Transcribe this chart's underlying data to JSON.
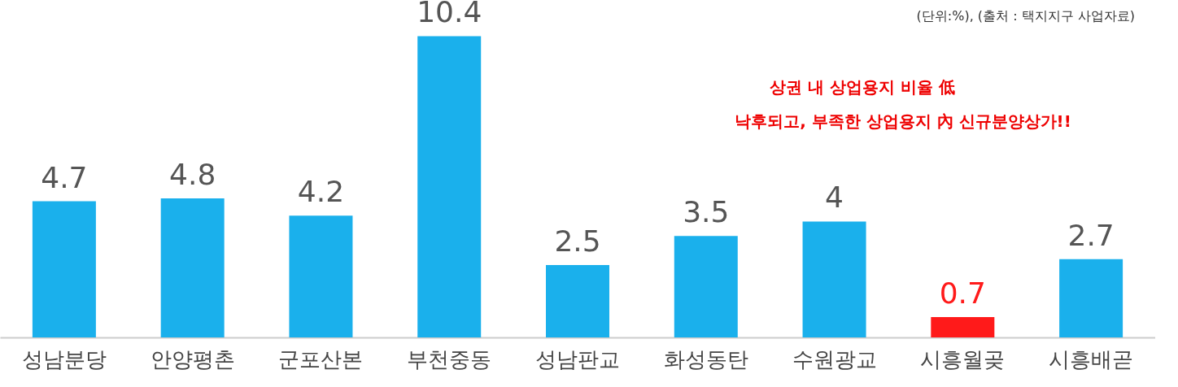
{
  "chart_data": {
    "type": "bar",
    "categories": [
      "성남분당",
      "안양평촌",
      "군포산본",
      "부천중동",
      "성남판교",
      "화성동탄",
      "수원광교",
      "시흥월곶",
      "시흥배곧"
    ],
    "values": [
      4.7,
      4.8,
      4.2,
      10.4,
      2.5,
      3.5,
      4,
      0.7,
      2.7
    ],
    "colors": [
      "#1ab0ec",
      "#1ab0ec",
      "#1ab0ec",
      "#1ab0ec",
      "#1ab0ec",
      "#1ab0ec",
      "#1ab0ec",
      "#ff1a1a",
      "#1ab0ec"
    ],
    "data_labels": true,
    "grid": false,
    "annotations": [
      "(단위:%), (출처 : 택지지구 사업자료)",
      "상권 내 상업용지 비율 低",
      "낙후되고, 부족한 상업용지 內 신규분양상가!!"
    ]
  }
}
